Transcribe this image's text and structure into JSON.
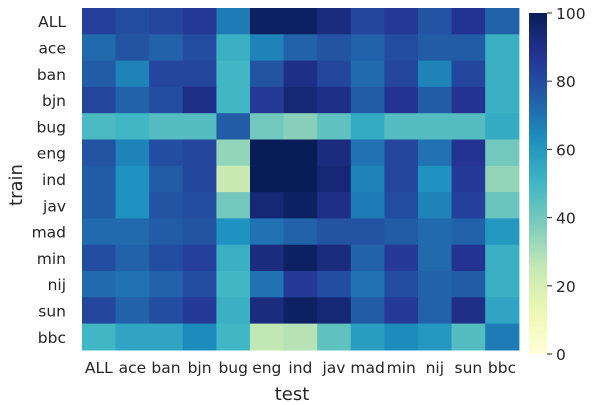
{
  "chart_data": {
    "type": "heatmap",
    "xlabel": "test",
    "ylabel": "train",
    "x_categories": [
      "ALL",
      "ace",
      "ban",
      "bjn",
      "bug",
      "eng",
      "ind",
      "jav",
      "mad",
      "min",
      "nij",
      "sun",
      "bbc"
    ],
    "y_categories": [
      "ALL",
      "ace",
      "ban",
      "bjn",
      "bug",
      "eng",
      "ind",
      "jav",
      "mad",
      "min",
      "nij",
      "sun",
      "bbc"
    ],
    "colorbar": {
      "min": 0,
      "max": 100,
      "ticks": [
        0,
        20,
        40,
        60,
        80,
        100
      ],
      "colormap": "YlGnBu"
    },
    "values": [
      [
        84,
        80,
        82,
        86,
        68,
        98,
        98,
        92,
        82,
        86,
        78,
        88,
        74
      ],
      [
        72,
        78,
        74,
        80,
        52,
        66,
        74,
        78,
        74,
        80,
        76,
        76,
        52
      ],
      [
        76,
        66,
        82,
        82,
        50,
        78,
        90,
        82,
        72,
        82,
        66,
        82,
        52
      ],
      [
        82,
        74,
        80,
        90,
        50,
        86,
        94,
        90,
        76,
        88,
        76,
        88,
        52
      ],
      [
        48,
        50,
        46,
        46,
        76,
        40,
        36,
        44,
        54,
        46,
        46,
        46,
        54
      ],
      [
        78,
        66,
        80,
        82,
        34,
        100,
        100,
        92,
        70,
        82,
        70,
        88,
        40
      ],
      [
        76,
        62,
        76,
        82,
        24,
        100,
        100,
        94,
        66,
        82,
        62,
        86,
        34
      ],
      [
        76,
        62,
        78,
        80,
        40,
        94,
        98,
        90,
        68,
        80,
        66,
        84,
        42
      ],
      [
        72,
        72,
        76,
        78,
        62,
        70,
        74,
        78,
        78,
        76,
        72,
        74,
        60
      ],
      [
        80,
        74,
        80,
        84,
        52,
        92,
        98,
        92,
        74,
        86,
        72,
        88,
        52
      ],
      [
        72,
        70,
        74,
        80,
        50,
        70,
        86,
        80,
        70,
        80,
        74,
        76,
        52
      ],
      [
        82,
        74,
        80,
        86,
        52,
        92,
        98,
        94,
        76,
        86,
        74,
        90,
        56
      ],
      [
        50,
        56,
        56,
        64,
        50,
        26,
        28,
        44,
        58,
        64,
        60,
        46,
        68
      ]
    ]
  }
}
